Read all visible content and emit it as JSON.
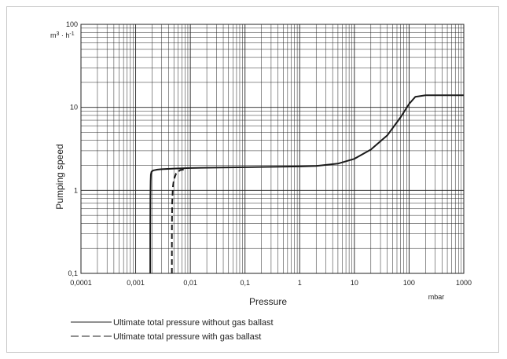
{
  "chart_data": {
    "type": "line",
    "title": "",
    "xlabel": "Pressure",
    "ylabel": "Pumping speed",
    "x_unit": "mbar",
    "y_unit": "m3 · h-1",
    "x_scale": "log",
    "y_scale": "log",
    "xlim": [
      0.0001,
      1000
    ],
    "ylim": [
      0.1,
      100
    ],
    "grid": true,
    "legend_position": "bottom-left",
    "x_ticks": [
      "0,0001",
      "0,001",
      "0,01",
      "0,1",
      "1",
      "10",
      "100",
      "1000"
    ],
    "y_ticks": [
      "0,1",
      "1",
      "10",
      "100"
    ],
    "series": [
      {
        "name": "Ultimate total pressure without gas ballast",
        "style": "solid",
        "x": [
          0.00185,
          0.00185,
          0.00186,
          0.00188,
          0.0019,
          0.00195,
          0.0021,
          0.0025,
          0.003,
          0.005,
          0.01,
          0.1,
          1,
          2,
          5,
          10,
          20,
          40,
          70,
          100,
          130,
          200,
          500,
          1000
        ],
        "y": [
          0.1,
          0.3,
          0.8,
          1.3,
          1.55,
          1.68,
          1.74,
          1.78,
          1.8,
          1.83,
          1.86,
          1.9,
          1.94,
          1.97,
          2.1,
          2.4,
          3.1,
          4.6,
          7.6,
          11.0,
          13.4,
          14.0,
          14.0,
          14.0
        ]
      },
      {
        "name": "Ultimate total pressure with gas ballast",
        "style": "dashed",
        "x": [
          0.0046,
          0.0046,
          0.00465,
          0.0048,
          0.005,
          0.0055,
          0.0065,
          0.008
        ],
        "y": [
          0.1,
          0.3,
          0.7,
          1.1,
          1.35,
          1.6,
          1.75,
          1.8
        ]
      }
    ]
  }
}
